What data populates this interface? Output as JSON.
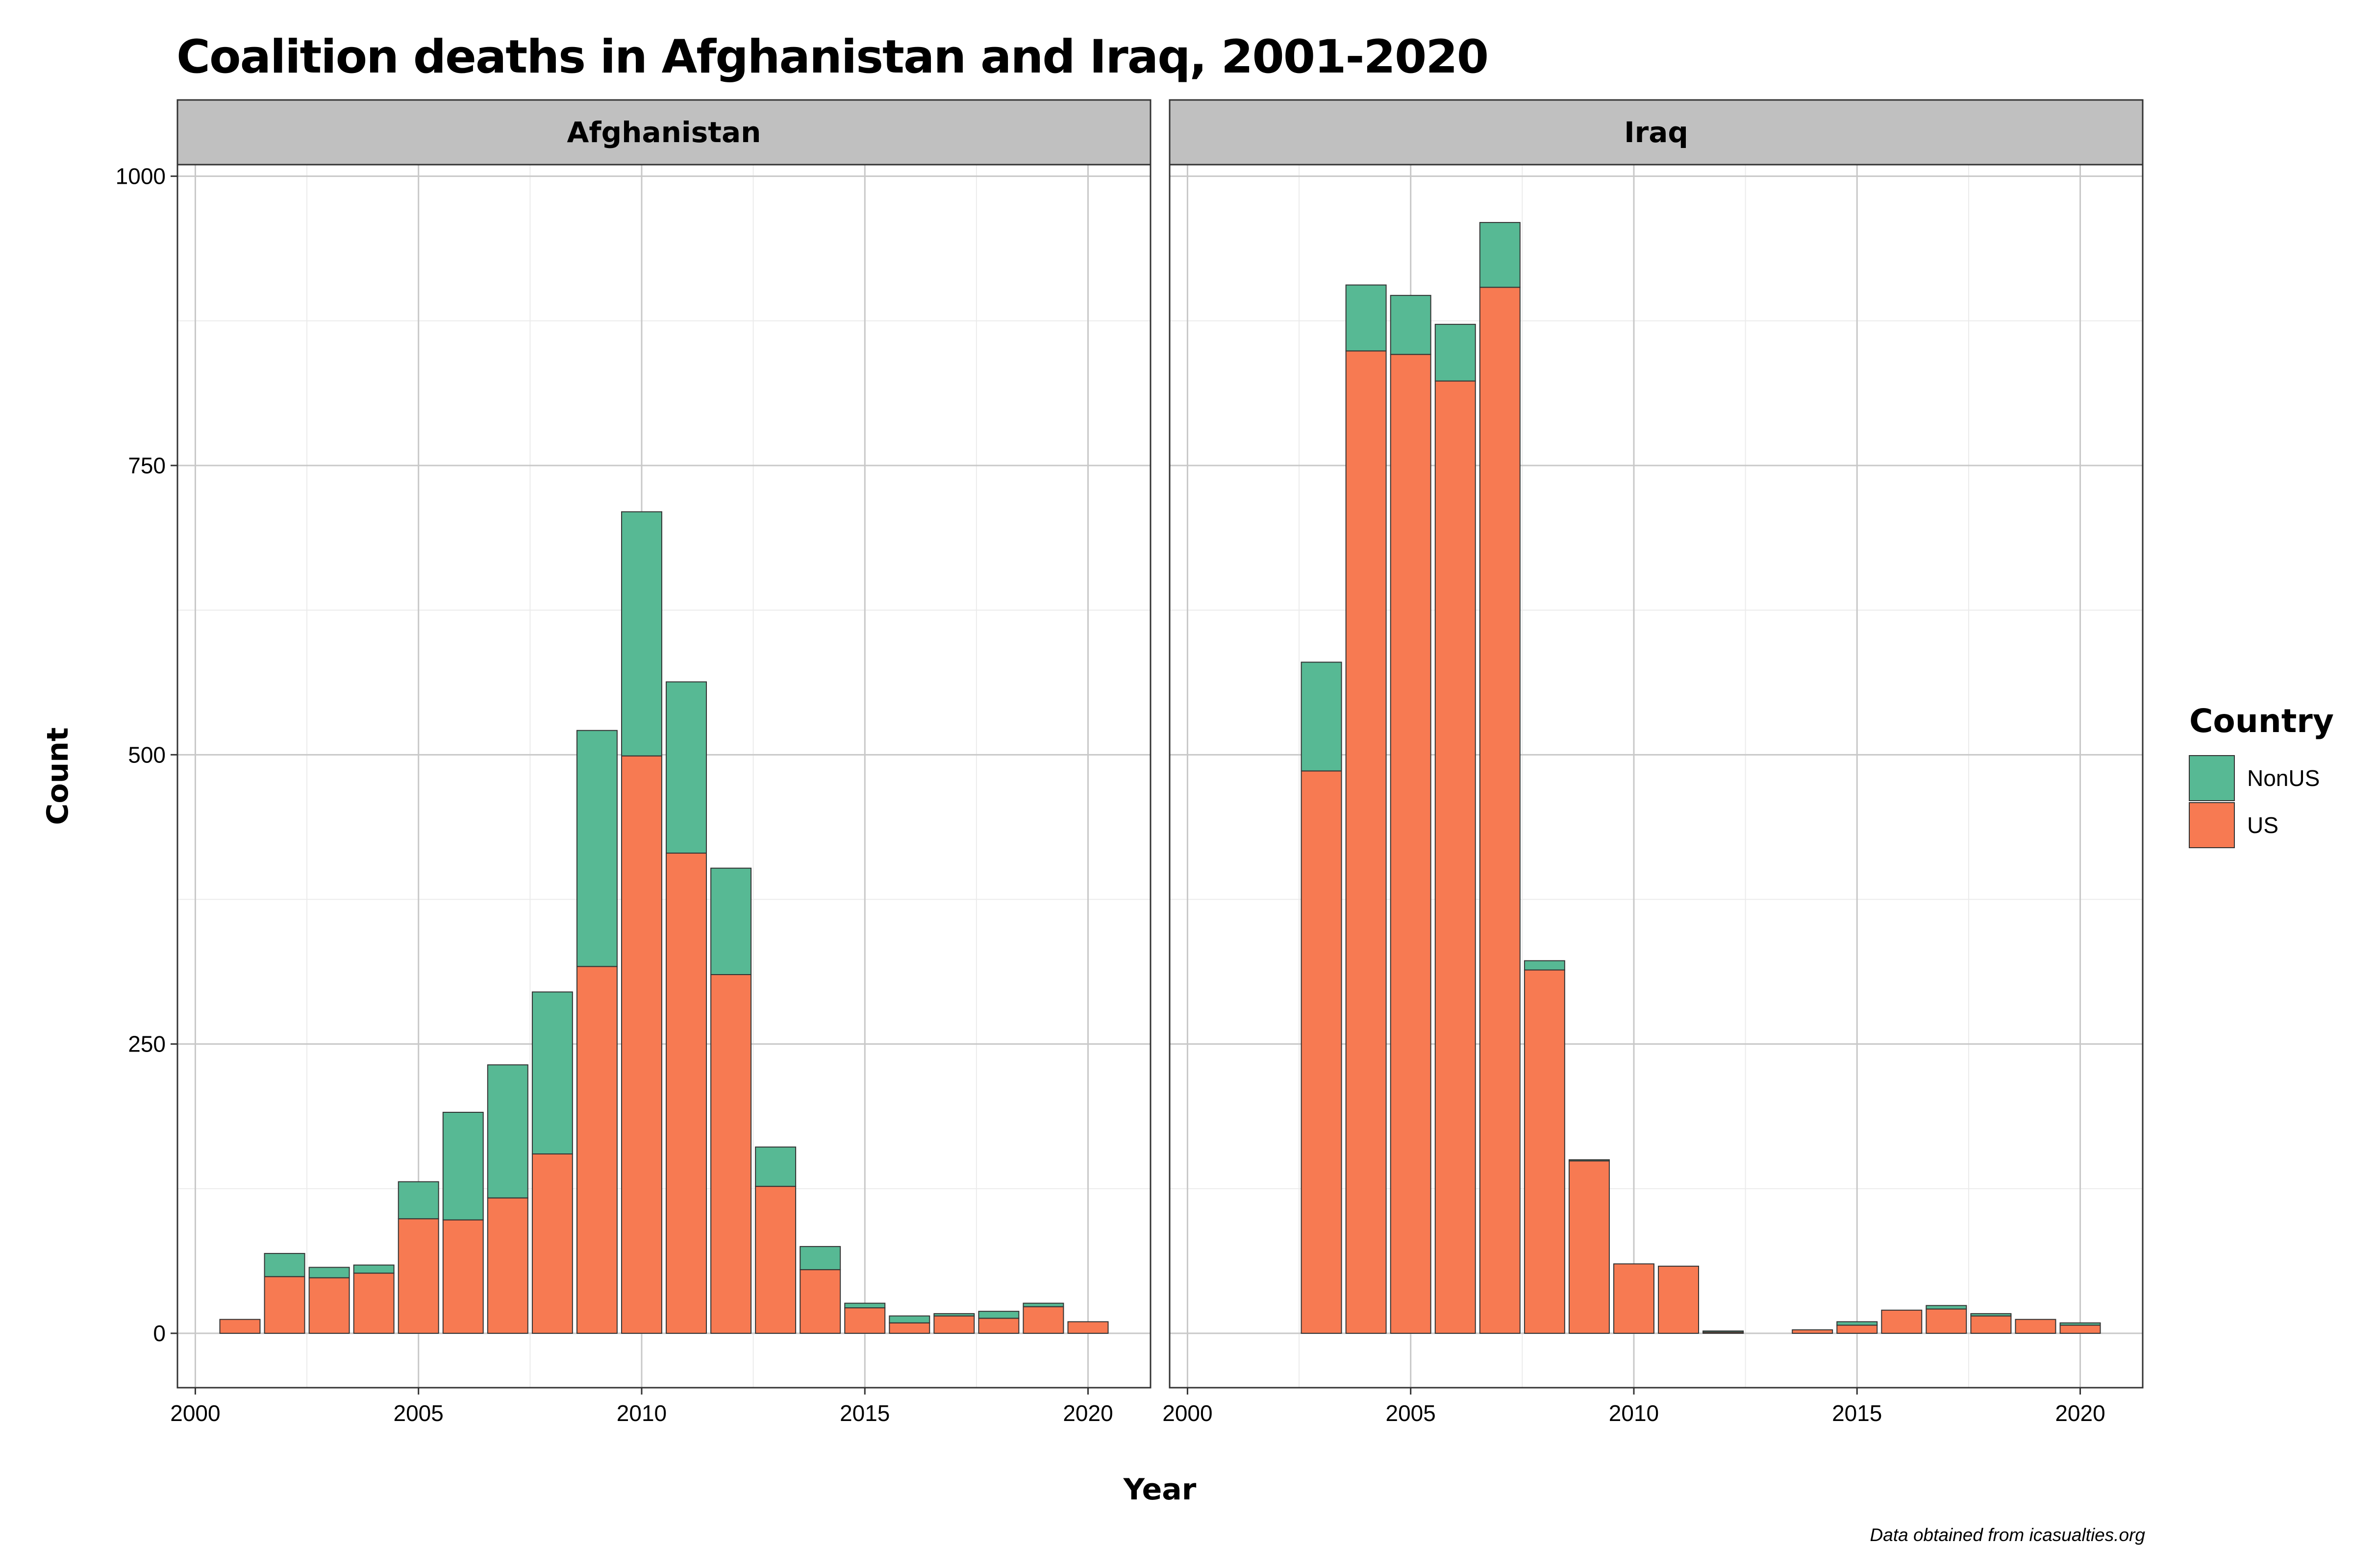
{
  "title": "Coalition deaths in Afghanistan and Iraq, 2001-2020",
  "caption": "Data obtained from icasualties.org",
  "chart_data": {
    "type": "bar",
    "stacked": true,
    "title": "Coalition deaths in Afghanistan and Iraq, 2001-2020",
    "xlabel": "Year",
    "ylabel": "Count",
    "xlim": [
      1999.6,
      2021.4
    ],
    "ylim": [
      -47,
      1010
    ],
    "x_ticks": [
      "2000",
      "2005",
      "2010",
      "2015",
      "2020"
    ],
    "y_ticks": [
      "0",
      "250",
      "500",
      "750",
      "1000"
    ],
    "grid": true,
    "legend": {
      "title": "Country",
      "position": "right",
      "entries": [
        {
          "name": "NonUS",
          "color": "#57B994"
        },
        {
          "name": "US",
          "color": "#F77A52"
        }
      ]
    },
    "facets": [
      {
        "name": "Afghanistan",
        "x": [
          2001,
          2002,
          2003,
          2004,
          2005,
          2006,
          2007,
          2008,
          2009,
          2010,
          2011,
          2012,
          2013,
          2014,
          2015,
          2016,
          2017,
          2018,
          2019,
          2020
        ],
        "series": [
          {
            "name": "US",
            "values": [
              12,
              49,
              48,
              52,
              99,
              98,
              117,
              155,
              317,
              499,
              415,
              310,
              127,
              55,
              22,
              9,
              15,
              13,
              23,
              10
            ]
          },
          {
            "name": "NonUS",
            "values": [
              0,
              20,
              9,
              7,
              32,
              93,
              115,
              140,
              204,
              211,
              148,
              92,
              34,
              20,
              4,
              6,
              2,
              6,
              3,
              0
            ]
          }
        ]
      },
      {
        "name": "Iraq",
        "x": [
          2001,
          2002,
          2003,
          2004,
          2005,
          2006,
          2007,
          2008,
          2009,
          2010,
          2011,
          2012,
          2013,
          2014,
          2015,
          2016,
          2017,
          2018,
          2019,
          2020
        ],
        "series": [
          {
            "name": "US",
            "values": [
              0,
              0,
              486,
              849,
              846,
              823,
              904,
              314,
              149,
              60,
              58,
              1,
              0,
              3,
              7,
              20,
              21,
              15,
              12,
              7
            ]
          },
          {
            "name": "NonUS",
            "values": [
              0,
              0,
              94,
              57,
              51,
              49,
              56,
              8,
              1,
              0,
              0,
              1,
              0,
              0,
              3,
              0,
              3,
              2,
              0,
              2
            ]
          }
        ]
      }
    ]
  }
}
